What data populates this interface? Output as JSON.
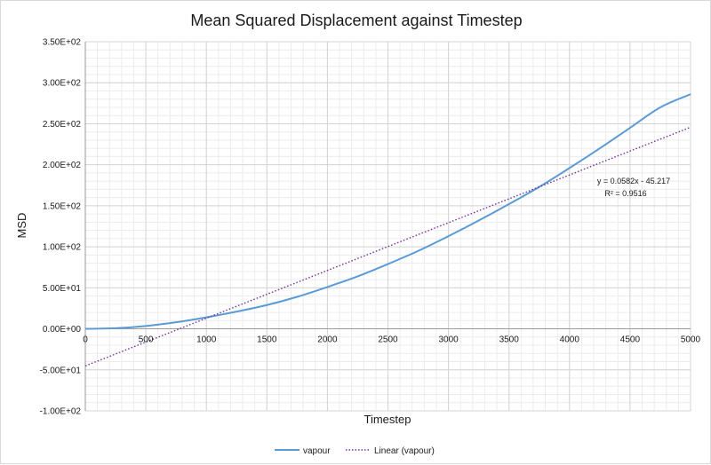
{
  "chart_data": {
    "type": "line",
    "title": "Mean Squared Displacement against Timestep",
    "xlabel": "Timestep",
    "ylabel": "MSD",
    "xlim": [
      0,
      5000
    ],
    "ylim": [
      -100,
      350
    ],
    "x_major_step": 500,
    "y_major_step": 50,
    "x_minor_per_major": 5,
    "y_minor_per_major": 5,
    "grid": true,
    "x_tick_labels": [
      "0",
      "500",
      "1000",
      "1500",
      "2000",
      "2500",
      "3000",
      "3500",
      "4000",
      "4500",
      "5000"
    ],
    "y_tick_labels": [
      "3.50E+02",
      "3.00E+02",
      "2.50E+02",
      "2.00E+02",
      "1.50E+02",
      "1.00E+02",
      "5.00E+01",
      "0.00E+00",
      "-5.00E+01",
      "-1.00E+02"
    ],
    "y_tick_values": [
      350,
      300,
      250,
      200,
      150,
      100,
      50,
      0,
      -50,
      -100
    ],
    "series": [
      {
        "name": "vapour",
        "color": "#5b9bd5",
        "style": "solid",
        "x": [
          0,
          250,
          500,
          750,
          1000,
          1250,
          1500,
          1750,
          2000,
          2250,
          2500,
          2750,
          3000,
          3250,
          3500,
          3750,
          4000,
          4250,
          4500,
          4750,
          5000
        ],
        "values": [
          0,
          0.8,
          3.5,
          8,
          14,
          21,
          29,
          39,
          51,
          64,
          79,
          95,
          113,
          132,
          152,
          173,
          196,
          220,
          245,
          270,
          286
        ]
      },
      {
        "name": "Linear (vapour)",
        "color": "#7030a0",
        "style": "dotted",
        "trendline": {
          "slope": 0.0582,
          "intercept": -45.217
        },
        "x": [
          0,
          5000
        ],
        "values": [
          -45.217,
          245.783
        ]
      }
    ],
    "annotations": {
      "equation": "y = 0.0582x - 45.217",
      "r_squared": "R² = 0.9516"
    },
    "legend": {
      "placement": "bottom-center",
      "items": [
        "vapour",
        "Linear (vapour)"
      ]
    }
  }
}
